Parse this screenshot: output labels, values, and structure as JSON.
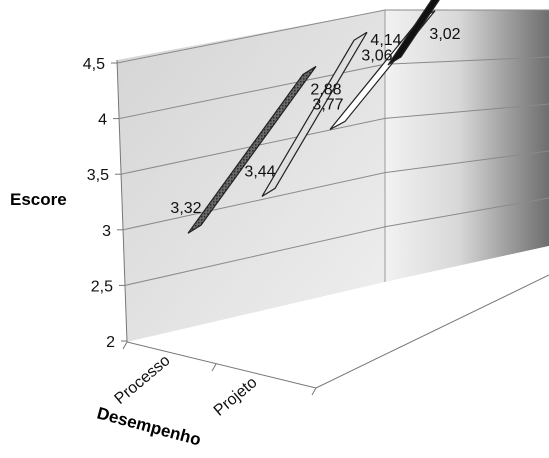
{
  "chart_data": {
    "type": "line",
    "style": "3d-ribbon",
    "categories": [
      "Processo",
      "Projeto"
    ],
    "series": [
      {
        "values": [
          3.32,
          2.88
        ],
        "fill": "#555555"
      },
      {
        "values": [
          3.44,
          3.06
        ],
        "fill": "#bdbdbd"
      },
      {
        "values": [
          3.77,
          3.02
        ],
        "fill": "#ffffff"
      },
      {
        "values": [
          4.14,
          3.77
        ],
        "fill": "#111111"
      }
    ],
    "data_labels": [
      [
        "3,32",
        "2,88"
      ],
      [
        "3,44",
        "3,06"
      ],
      [
        "3,77",
        "3,02"
      ],
      [
        "4,14",
        "3,77"
      ]
    ],
    "xlabel": "Desempenho",
    "ylabel": "Escore",
    "ylim": [
      2,
      4.5
    ],
    "yticks": [
      2,
      2.5,
      3,
      3.5,
      4,
      4.5
    ],
    "ytick_labels": [
      "2",
      "2,5",
      "3",
      "3,5",
      "4",
      "4,5"
    ],
    "grid": true,
    "legend": "none"
  }
}
